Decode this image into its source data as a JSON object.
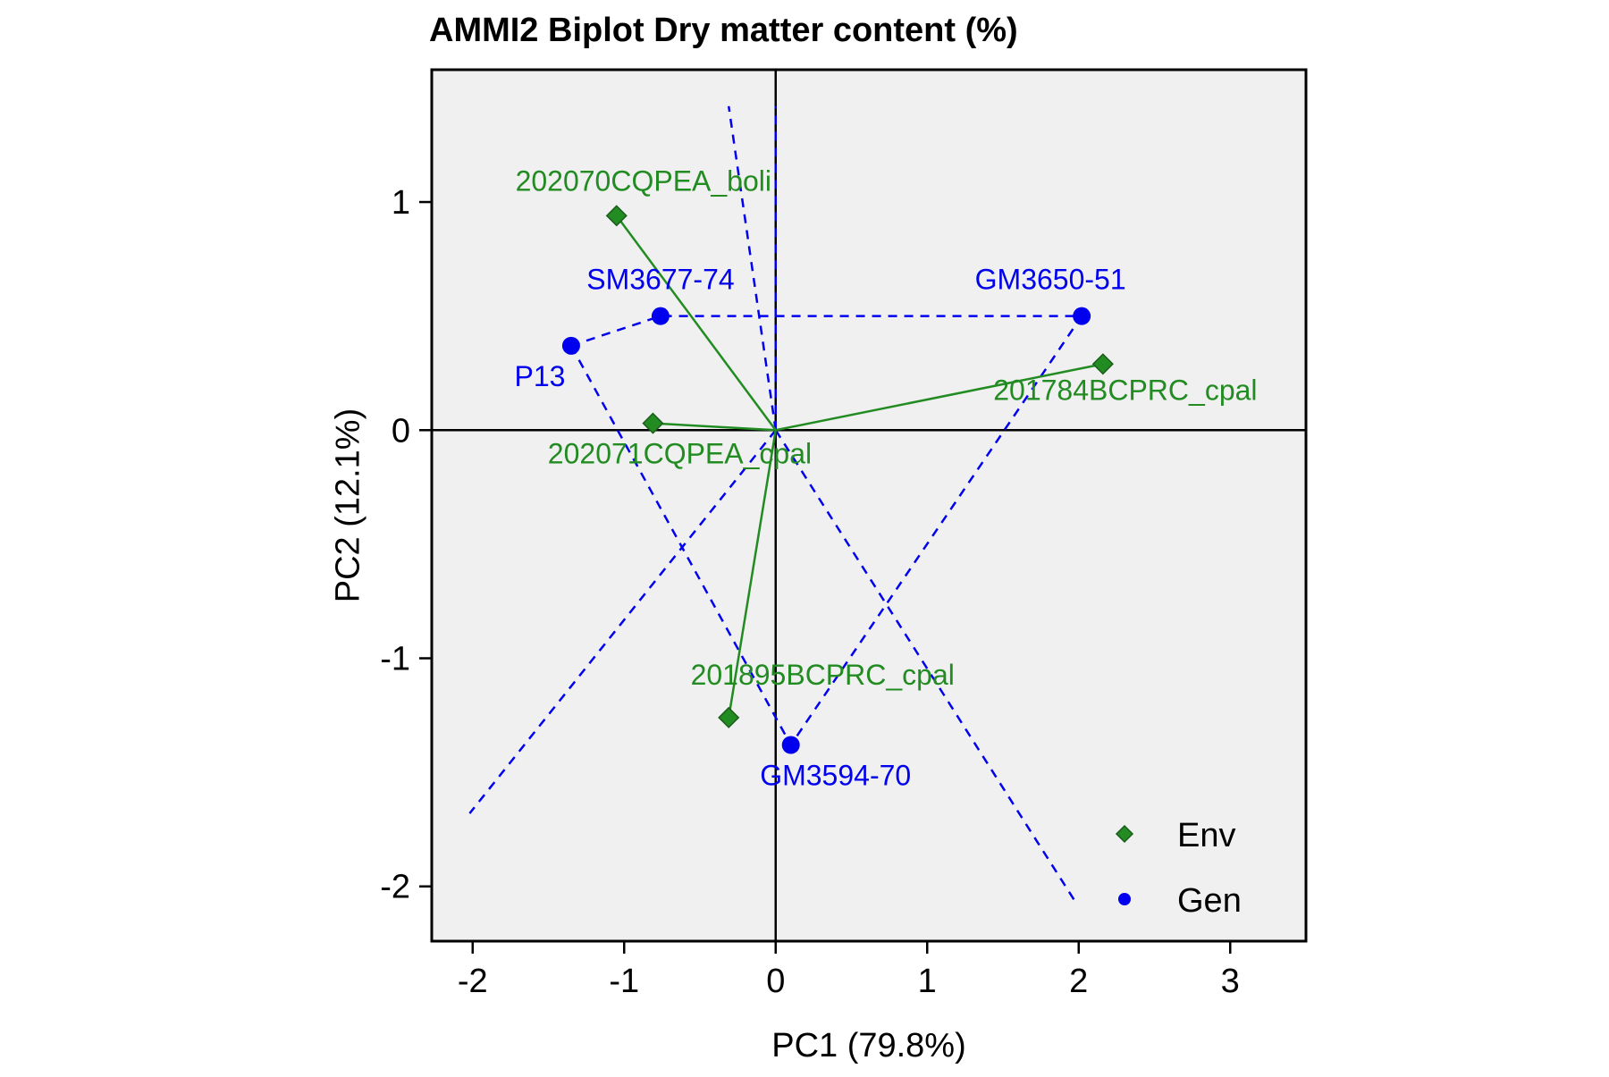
{
  "chart_data": {
    "type": "scatter",
    "title": "AMMI2 Biplot Dry matter content (%)",
    "xlabel": "PC1 (79.8%)",
    "ylabel": "PC2 (12.1%)",
    "xlim": [
      -2.27,
      3.5
    ],
    "ylim": [
      -2.24,
      1.58
    ],
    "xticks": [
      -2,
      -1,
      0,
      1,
      2,
      3
    ],
    "xtick_labels": [
      "-2",
      "-1",
      "0",
      "1",
      "2",
      "3"
    ],
    "yticks": [
      -2,
      -1,
      0,
      1
    ],
    "ytick_labels": [
      "-2",
      "-1",
      "0",
      "1"
    ],
    "grid": false,
    "panel_background": "#f0f0f0",
    "legend_position": "bottom-right",
    "series": [
      {
        "name": "Env",
        "marker": "diamond",
        "color": "#228b22",
        "vectors_from_origin": true,
        "points": [
          {
            "label": "202070CQPEA_boli",
            "x": -1.05,
            "y": 0.94
          },
          {
            "label": "201784BCPRC_cpal",
            "x": 2.16,
            "y": 0.29
          },
          {
            "label": "202071CQPEA_cpal",
            "x": -0.81,
            "y": 0.03
          },
          {
            "label": "201895BCPRC_cpal",
            "x": -0.31,
            "y": -1.26
          }
        ]
      },
      {
        "name": "Gen",
        "marker": "circle",
        "color": "#0000ee",
        "points": [
          {
            "label": "SM3677-74",
            "x": -0.76,
            "y": 0.5
          },
          {
            "label": "GM3650-51",
            "x": 2.02,
            "y": 0.5
          },
          {
            "label": "P13",
            "x": -1.35,
            "y": 0.37
          },
          {
            "label": "GM3594-70",
            "x": 0.1,
            "y": -1.38
          }
        ]
      }
    ],
    "polygon_color": "#0000ee",
    "polygon": [
      [
        -1.35,
        0.37
      ],
      [
        -0.76,
        0.5
      ],
      [
        2.02,
        0.5
      ],
      [
        0.1,
        -1.38
      ],
      [
        -1.35,
        0.37
      ]
    ],
    "sector_rays": [
      [
        [
          0,
          0
        ],
        [
          -0.31,
          1.42
        ]
      ],
      [
        [
          0,
          0
        ],
        [
          0.0,
          1.42
        ]
      ],
      [
        [
          0,
          0
        ],
        [
          -2.02,
          -1.68
        ]
      ],
      [
        [
          0,
          0
        ],
        [
          1.99,
          -2.08
        ]
      ]
    ]
  }
}
